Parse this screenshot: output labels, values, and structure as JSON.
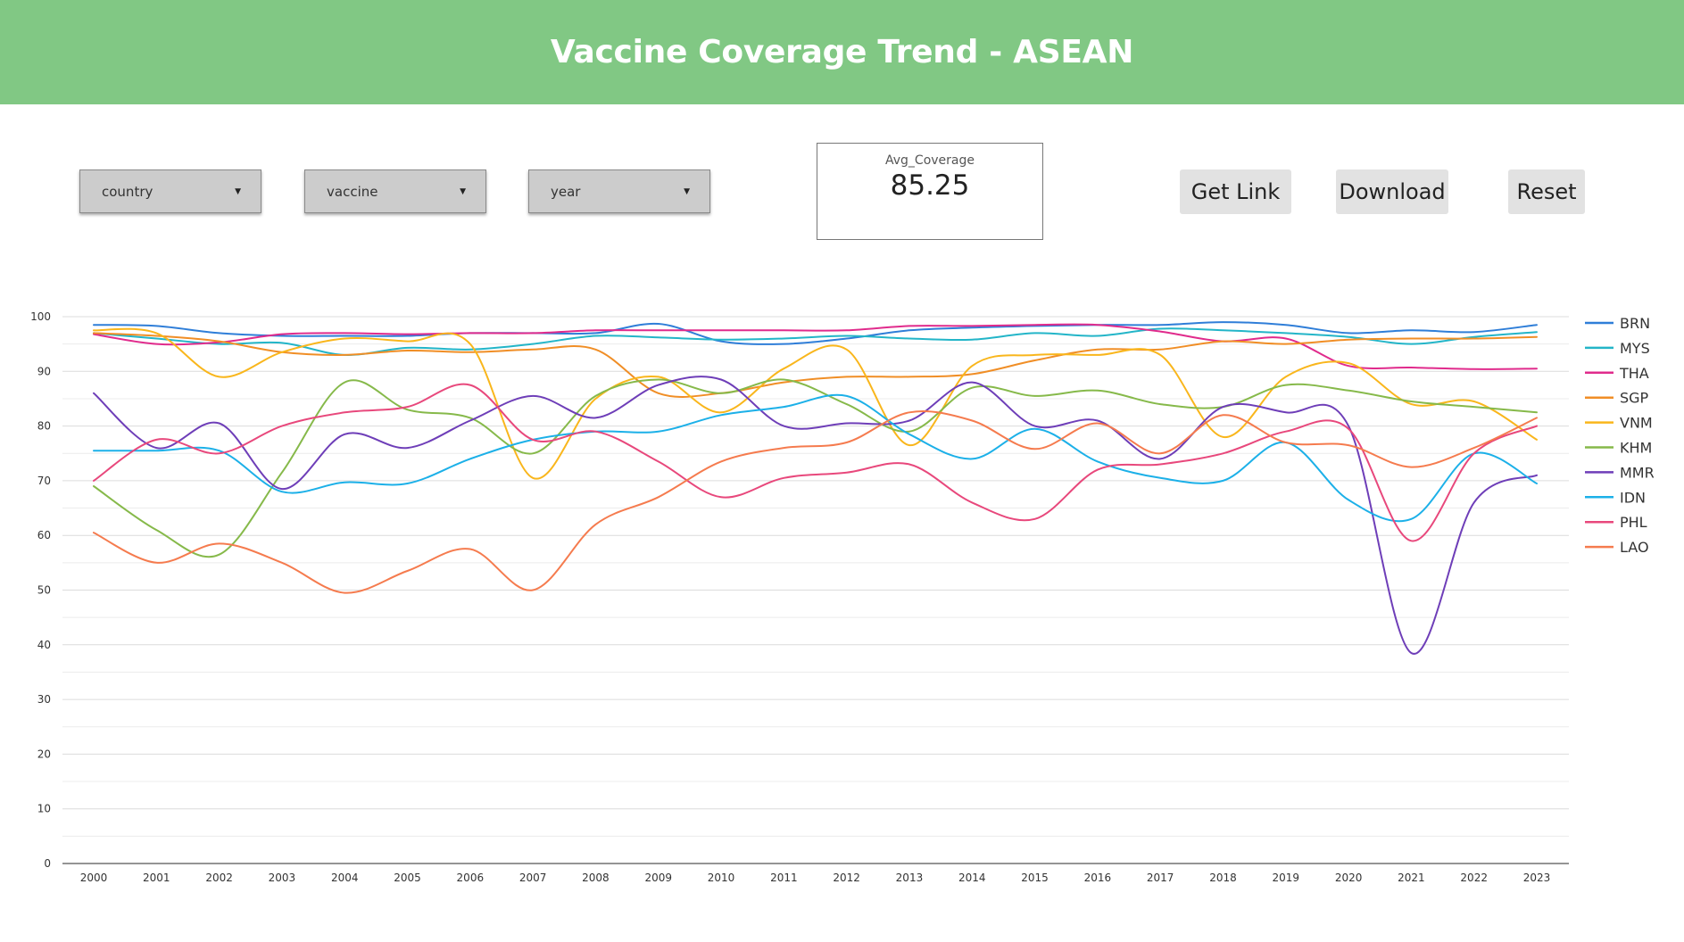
{
  "header": {
    "title": "Vaccine Coverage Trend - ASEAN",
    "bg_color": "#81c884"
  },
  "filters": [
    {
      "label": "country",
      "icon": "caret-down-icon"
    },
    {
      "label": "vaccine",
      "icon": "caret-down-icon"
    },
    {
      "label": "year",
      "icon": "caret-down-icon"
    }
  ],
  "scorecard": {
    "title": "Avg_Coverage",
    "value": "85.25"
  },
  "buttons": {
    "get_link": "Get Link",
    "download": "Download",
    "reset": "Reset"
  },
  "chart_data": {
    "type": "line",
    "title": "",
    "xlabel": "",
    "ylabel": "",
    "ylim": [
      0,
      100
    ],
    "yticks": [
      0,
      10,
      20,
      30,
      40,
      50,
      60,
      70,
      80,
      90,
      100
    ],
    "grid": true,
    "legend": "right",
    "categories": [
      "2000",
      "2001",
      "2002",
      "2003",
      "2004",
      "2005",
      "2006",
      "2007",
      "2008",
      "2009",
      "2010",
      "2011",
      "2012",
      "2013",
      "2014",
      "2015",
      "2016",
      "2017",
      "2018",
      "2019",
      "2020",
      "2021",
      "2022",
      "2023"
    ],
    "series": [
      {
        "name": "BRN",
        "color": "#2f7ed8",
        "values": [
          98.5,
          98.3,
          97.0,
          96.5,
          96.5,
          96.5,
          97.0,
          97.0,
          97.0,
          98.7,
          95.5,
          95.0,
          96.0,
          97.5,
          98.0,
          98.3,
          98.5,
          98.5,
          99.0,
          98.5,
          97.0,
          97.5,
          97.2,
          98.5
        ]
      },
      {
        "name": "MYS",
        "color": "#23b5c8",
        "values": [
          97.0,
          96.0,
          95.0,
          95.2,
          93.0,
          94.3,
          94.0,
          95.0,
          96.5,
          96.2,
          95.8,
          96.0,
          96.5,
          96.0,
          95.8,
          97.0,
          96.5,
          97.8,
          97.5,
          97.0,
          96.3,
          95.0,
          96.3,
          97.2
        ]
      },
      {
        "name": "THA",
        "color": "#e02b8c",
        "values": [
          96.8,
          95.0,
          95.3,
          96.8,
          97.0,
          96.8,
          97.0,
          97.0,
          97.5,
          97.5,
          97.5,
          97.5,
          97.5,
          98.3,
          98.3,
          98.5,
          98.5,
          97.3,
          95.5,
          96.0,
          91.0,
          90.7,
          90.4,
          90.5
        ]
      },
      {
        "name": "SGP",
        "color": "#f08e26",
        "values": [
          97.0,
          96.5,
          95.5,
          93.5,
          93.0,
          93.8,
          93.5,
          94.0,
          94.0,
          86.0,
          86.0,
          88.0,
          89.0,
          89.0,
          89.5,
          92.0,
          94.0,
          94.0,
          95.5,
          95.0,
          95.8,
          96.0,
          96.0,
          96.3
        ]
      },
      {
        "name": "VNM",
        "color": "#f9b61c",
        "values": [
          97.5,
          97.0,
          89.0,
          93.5,
          96.0,
          95.5,
          95.0,
          70.5,
          85.0,
          89.0,
          82.5,
          90.5,
          94.0,
          76.5,
          91.0,
          93.0,
          93.0,
          93.0,
          78.0,
          89.0,
          91.5,
          84.0,
          84.5,
          77.5
        ]
      },
      {
        "name": "KHM",
        "color": "#86b94a",
        "values": [
          69.0,
          61.0,
          56.5,
          71.5,
          88.0,
          83.0,
          81.5,
          75.0,
          85.5,
          88.5,
          86.0,
          88.5,
          84.0,
          79.0,
          87.0,
          85.5,
          86.5,
          84.0,
          83.5,
          87.5,
          86.5,
          84.5,
          83.5,
          82.5
        ]
      },
      {
        "name": "MMR",
        "color": "#6e3eb8",
        "values": [
          86.0,
          76.0,
          80.5,
          68.5,
          78.5,
          76.0,
          81.0,
          85.5,
          81.5,
          87.5,
          88.5,
          80.0,
          80.5,
          81.0,
          88.0,
          80.0,
          81.0,
          74.0,
          83.5,
          82.5,
          80.0,
          38.5,
          66.0,
          71.0
        ]
      },
      {
        "name": "IDN",
        "color": "#1cb0e8",
        "values": [
          75.5,
          75.5,
          75.5,
          68.0,
          69.7,
          69.5,
          74.0,
          77.5,
          79.0,
          79.0,
          82.0,
          83.5,
          85.5,
          78.5,
          74.0,
          79.5,
          73.5,
          70.5,
          70.0,
          77.0,
          66.5,
          63.0,
          75.0,
          69.5
        ]
      },
      {
        "name": "PHL",
        "color": "#e8487c",
        "values": [
          70.0,
          77.5,
          75.0,
          80.0,
          82.5,
          83.5,
          87.5,
          77.5,
          79.0,
          73.5,
          67.0,
          70.5,
          71.5,
          73.0,
          66.0,
          63.0,
          72.0,
          73.0,
          75.0,
          79.0,
          79.5,
          59.0,
          75.0,
          80.0
        ]
      },
      {
        "name": "LAO",
        "color": "#f57b4e",
        "values": [
          60.5,
          55.0,
          58.5,
          55.0,
          49.5,
          53.5,
          57.5,
          50.0,
          62.0,
          67.0,
          73.5,
          76.0,
          77.0,
          82.5,
          81.0,
          75.8,
          80.5,
          75.0,
          82.0,
          77.0,
          76.5,
          72.5,
          76.0,
          81.5
        ]
      }
    ]
  }
}
